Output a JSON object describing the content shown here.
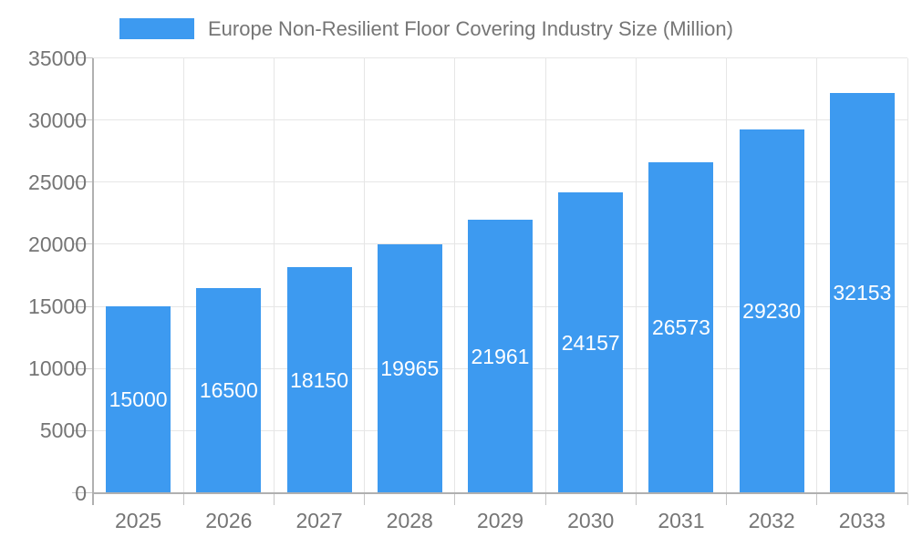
{
  "chart_data": {
    "type": "bar",
    "title": "Europe Non-Resilient Floor Covering Industry Size (Million)",
    "categories": [
      "2025",
      "2026",
      "2027",
      "2028",
      "2029",
      "2030",
      "2031",
      "2032",
      "2033"
    ],
    "values": [
      15000,
      16500,
      18150,
      19965,
      21961,
      24157,
      26573,
      29230,
      32153
    ],
    "xlabel": "",
    "ylabel": "",
    "ylim": [
      0,
      35000
    ],
    "ytick_step": 5000,
    "yticks": [
      0,
      5000,
      10000,
      15000,
      20000,
      25000,
      30000,
      35000
    ],
    "grid": true,
    "legend_position": "top",
    "value_labels": "inside-center",
    "colors": {
      "bar": "#3d9af0",
      "value_label": "#ffffff",
      "grid_line": "#e6e6e6",
      "axis_line": "#b0b0b0",
      "tick_mark": "#c6c6c6",
      "tick_label": "#757575",
      "title_text": "#757575",
      "background": "#ffffff"
    }
  }
}
